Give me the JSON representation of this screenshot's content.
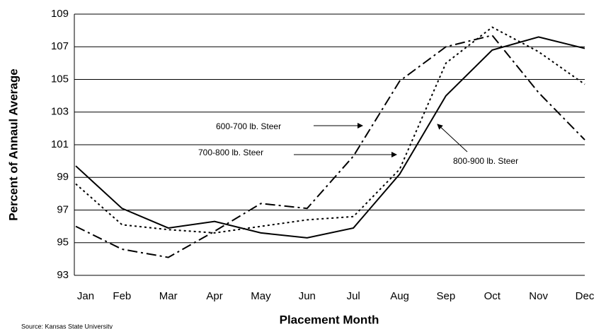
{
  "chart_data": {
    "type": "line",
    "y_label": "Percent of Annaul Average",
    "x_label": "Placement Month",
    "source": "Source: Kansas State University",
    "categories": [
      "Jan",
      "Feb",
      "Mar",
      "Apr",
      "May",
      "Jun",
      "Jul",
      "Aug",
      "Sep",
      "Oct",
      "Nov",
      "Dec"
    ],
    "series": [
      {
        "name": "800-900 lb. Steer",
        "color": "#000000",
        "dash": "solid",
        "values": [
          99.7,
          97.1,
          95.9,
          96.3,
          95.6,
          95.3,
          95.9,
          99.2,
          104,
          106.8,
          107.6,
          106.9
        ]
      },
      {
        "name": "700-800 lb. Steer",
        "color": "#000000",
        "dash": "dot",
        "values": [
          98.6,
          96.1,
          95.8,
          95.6,
          96.0,
          96.4,
          96.6,
          99.5,
          106,
          108.2,
          106.7,
          104.7
        ]
      },
      {
        "name": "600-700 lb. Steer",
        "color": "#000000",
        "dash": "dashdot",
        "values": [
          96.0,
          94.6,
          94.1,
          95.7,
          97.4,
          97.1,
          100.3,
          104.9,
          107,
          107.7,
          104.2,
          101.3
        ]
      }
    ],
    "ylim": [
      93,
      109
    ],
    "yticks": [
      93,
      95,
      97,
      99,
      101,
      103,
      105,
      107,
      109
    ],
    "grid": true
  }
}
